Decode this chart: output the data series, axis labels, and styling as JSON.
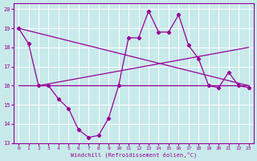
{
  "xlabel": "Windchill (Refroidissement éolien,°C)",
  "bg_color": "#c8eaea",
  "line_color": "#990099",
  "grid_color": "#ffffff",
  "xlim": [
    -0.5,
    23.5
  ],
  "ylim": [
    13,
    20.3
  ],
  "yticks": [
    13,
    14,
    15,
    16,
    17,
    18,
    19,
    20
  ],
  "xticks": [
    0,
    1,
    2,
    3,
    4,
    5,
    6,
    7,
    8,
    9,
    10,
    11,
    12,
    13,
    14,
    15,
    16,
    17,
    18,
    19,
    20,
    21,
    22,
    23
  ],
  "series1_x": [
    0,
    1,
    2,
    3,
    4,
    5,
    6,
    7,
    8,
    9,
    10,
    11,
    12,
    13,
    14,
    15,
    16,
    17,
    18,
    19,
    20,
    21,
    22,
    23
  ],
  "series1_y": [
    19.0,
    18.2,
    16.0,
    16.0,
    15.3,
    14.8,
    13.7,
    13.3,
    13.4,
    14.3,
    16.0,
    18.5,
    18.5,
    19.9,
    18.8,
    18.8,
    19.7,
    18.1,
    17.4,
    16.0,
    15.9,
    16.7,
    16.0,
    15.9
  ],
  "line1_x": [
    0,
    23
  ],
  "line1_y": [
    19.0,
    16.0
  ],
  "line2_x": [
    2,
    23
  ],
  "line2_y": [
    16.0,
    18.0
  ],
  "line3_x": [
    0,
    23
  ],
  "line3_y": [
    16.0,
    16.0
  ]
}
